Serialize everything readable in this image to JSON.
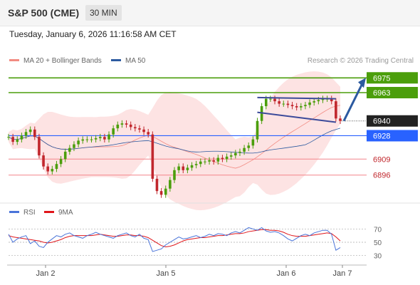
{
  "header": {
    "title": "S&P 500 (CME)",
    "timeframe_label": "30 MIN",
    "datetime": "Tuesday, January 6, 2026 11:16:58 AM CET"
  },
  "legend": {
    "ma20_label": "MA 20 + Bollinger Bands",
    "ma50_label": "MA 50",
    "ma20_color": "#f28b82",
    "ma50_color": "#2c5aa0",
    "credit": "Research © 2026 Trading Central"
  },
  "rsi_legend": {
    "rsi_label": "RSI",
    "ma_label": "9MA",
    "rsi_color": "#4a74d9",
    "ma_color": "#e0161b"
  },
  "colors": {
    "resistance": "#4b9e0b",
    "support_blue": "#2962ff",
    "support_red": "#f3848a",
    "last_price_tag": "#222222",
    "up_candle": "#4b9e0b",
    "down_candle": "#c1272d",
    "band_fill": "#fde3e3"
  },
  "chart_data": [
    {
      "type": "candlestick",
      "title": "",
      "x_ticks": [
        "Jan 2",
        "Jan 5",
        "Jan 6",
        "Jan 7"
      ],
      "ylim": [
        6875,
        6985
      ],
      "last_price": 6940,
      "levels": {
        "resistance": [
          6975,
          6963
        ],
        "pivot": 6928,
        "support": [
          6909,
          6896
        ]
      },
      "level_labels": {
        "r2": "6975",
        "r1": "6963",
        "last": "6940",
        "pivot": "6928",
        "s1": "6909",
        "s2": "6896"
      },
      "series": [
        {
          "name": "Price (approx. closes)",
          "values": [
            6927,
            6923,
            6925,
            6928,
            6931,
            6933,
            6927,
            6912,
            6903,
            6899,
            6901,
            6905,
            6909,
            6915,
            6918,
            6921,
            6924,
            6925,
            6925,
            6925,
            6926,
            6927,
            6925,
            6929,
            6934,
            6937,
            6938,
            6937,
            6935,
            6934,
            6933,
            6931,
            6929,
            6893,
            6883,
            6880,
            6885,
            6892,
            6900,
            6903,
            6900,
            6902,
            6904,
            6905,
            6907,
            6907,
            6908,
            6907,
            6910,
            6909,
            6911,
            6912,
            6914,
            6915,
            6918,
            6920,
            6925,
            6940,
            6952,
            6958,
            6958,
            6956,
            6954,
            6954,
            6953,
            6952,
            6951,
            6952,
            6953,
            6955,
            6956,
            6957,
            6958,
            6958,
            6956,
            6942,
            6940
          ]
        }
      ],
      "pattern": "Flag",
      "forecast_target": 6975
    },
    {
      "type": "line",
      "title": "",
      "ylim": [
        20,
        80
      ],
      "y_ticks": [
        "70",
        "50",
        "30"
      ],
      "series": [
        {
          "name": "RSI",
          "values": [
            62,
            50,
            55,
            58,
            60,
            48,
            52,
            44,
            42,
            50,
            55,
            60,
            58,
            62,
            64,
            60,
            58,
            56,
            60,
            62,
            65,
            62,
            60,
            58,
            56,
            60,
            62,
            64,
            60,
            58,
            62,
            56,
            54,
            36,
            38,
            40,
            46,
            50,
            54,
            58,
            55,
            56,
            58,
            60,
            57,
            59,
            62,
            60,
            63,
            62,
            60,
            64,
            66,
            64,
            68,
            72,
            70,
            68,
            72,
            67,
            65,
            66,
            64,
            60,
            55,
            52,
            56,
            60,
            62,
            60,
            64,
            66,
            68,
            68,
            62,
            38,
            42
          ]
        },
        {
          "name": "9MA",
          "values": [
            60,
            58,
            57,
            56,
            55,
            54,
            53,
            52,
            50,
            49,
            50,
            52,
            54,
            57,
            59,
            60,
            60,
            60,
            60,
            60,
            61,
            62,
            61,
            60,
            59,
            59,
            60,
            61,
            61,
            60,
            60,
            59,
            57,
            53,
            49,
            45,
            43,
            44,
            46,
            49,
            52,
            54,
            55,
            56,
            57,
            57,
            58,
            59,
            60,
            60,
            61,
            62,
            63,
            63,
            64,
            66,
            67,
            68,
            69,
            69,
            68,
            68,
            67,
            65,
            62,
            60,
            59,
            59,
            59,
            60,
            61,
            62,
            63,
            64,
            63,
            58,
            52
          ]
        }
      ]
    }
  ]
}
